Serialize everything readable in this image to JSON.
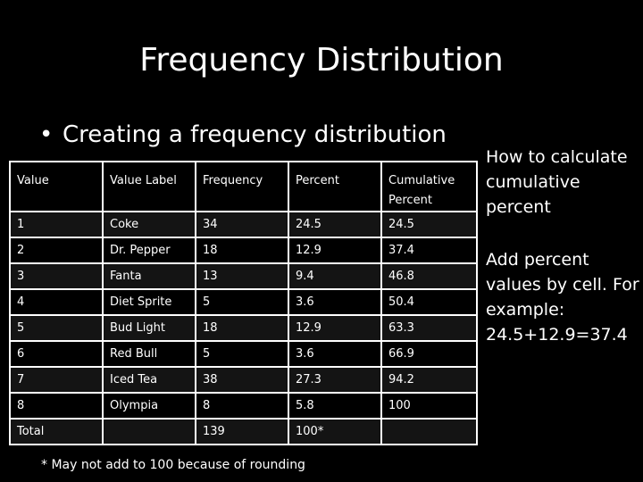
{
  "slide": {
    "title": "Frequency Distribution",
    "bullet": "Creating a frequency distribution",
    "bullet_marker": "•"
  },
  "table": {
    "headers": [
      "Value",
      "Value Label",
      "Frequency",
      "Percent",
      "Cumulative Percent"
    ],
    "rows": [
      [
        "1",
        "Coke",
        "34",
        "24.5",
        "24.5"
      ],
      [
        "2",
        "Dr. Pepper",
        "18",
        "12.9",
        "37.4"
      ],
      [
        "3",
        "Fanta",
        "13",
        "9.4",
        "46.8"
      ],
      [
        "4",
        "Diet Sprite",
        "5",
        "3.6",
        "50.4"
      ],
      [
        "5",
        "Bud Light",
        "18",
        "12.9",
        "63.3"
      ],
      [
        "6",
        "Red Bull",
        "5",
        "3.6",
        "66.9"
      ],
      [
        "7",
        "Iced Tea",
        "38",
        "27.3",
        "94.2"
      ],
      [
        "8",
        "Olympia",
        "8",
        "5.8",
        "100"
      ],
      [
        "Total",
        "",
        "139",
        "100*",
        ""
      ]
    ]
  },
  "sidebar": {
    "note_1": "How to calculate cumulative percent",
    "note_2": "Add percent values by cell. For example: 24.5+12.9=37.4"
  },
  "footnote": "* May not add to 100 because of rounding",
  "colors": {
    "background": "#000000",
    "text": "#ffffff",
    "table_border": "#ffffff"
  }
}
